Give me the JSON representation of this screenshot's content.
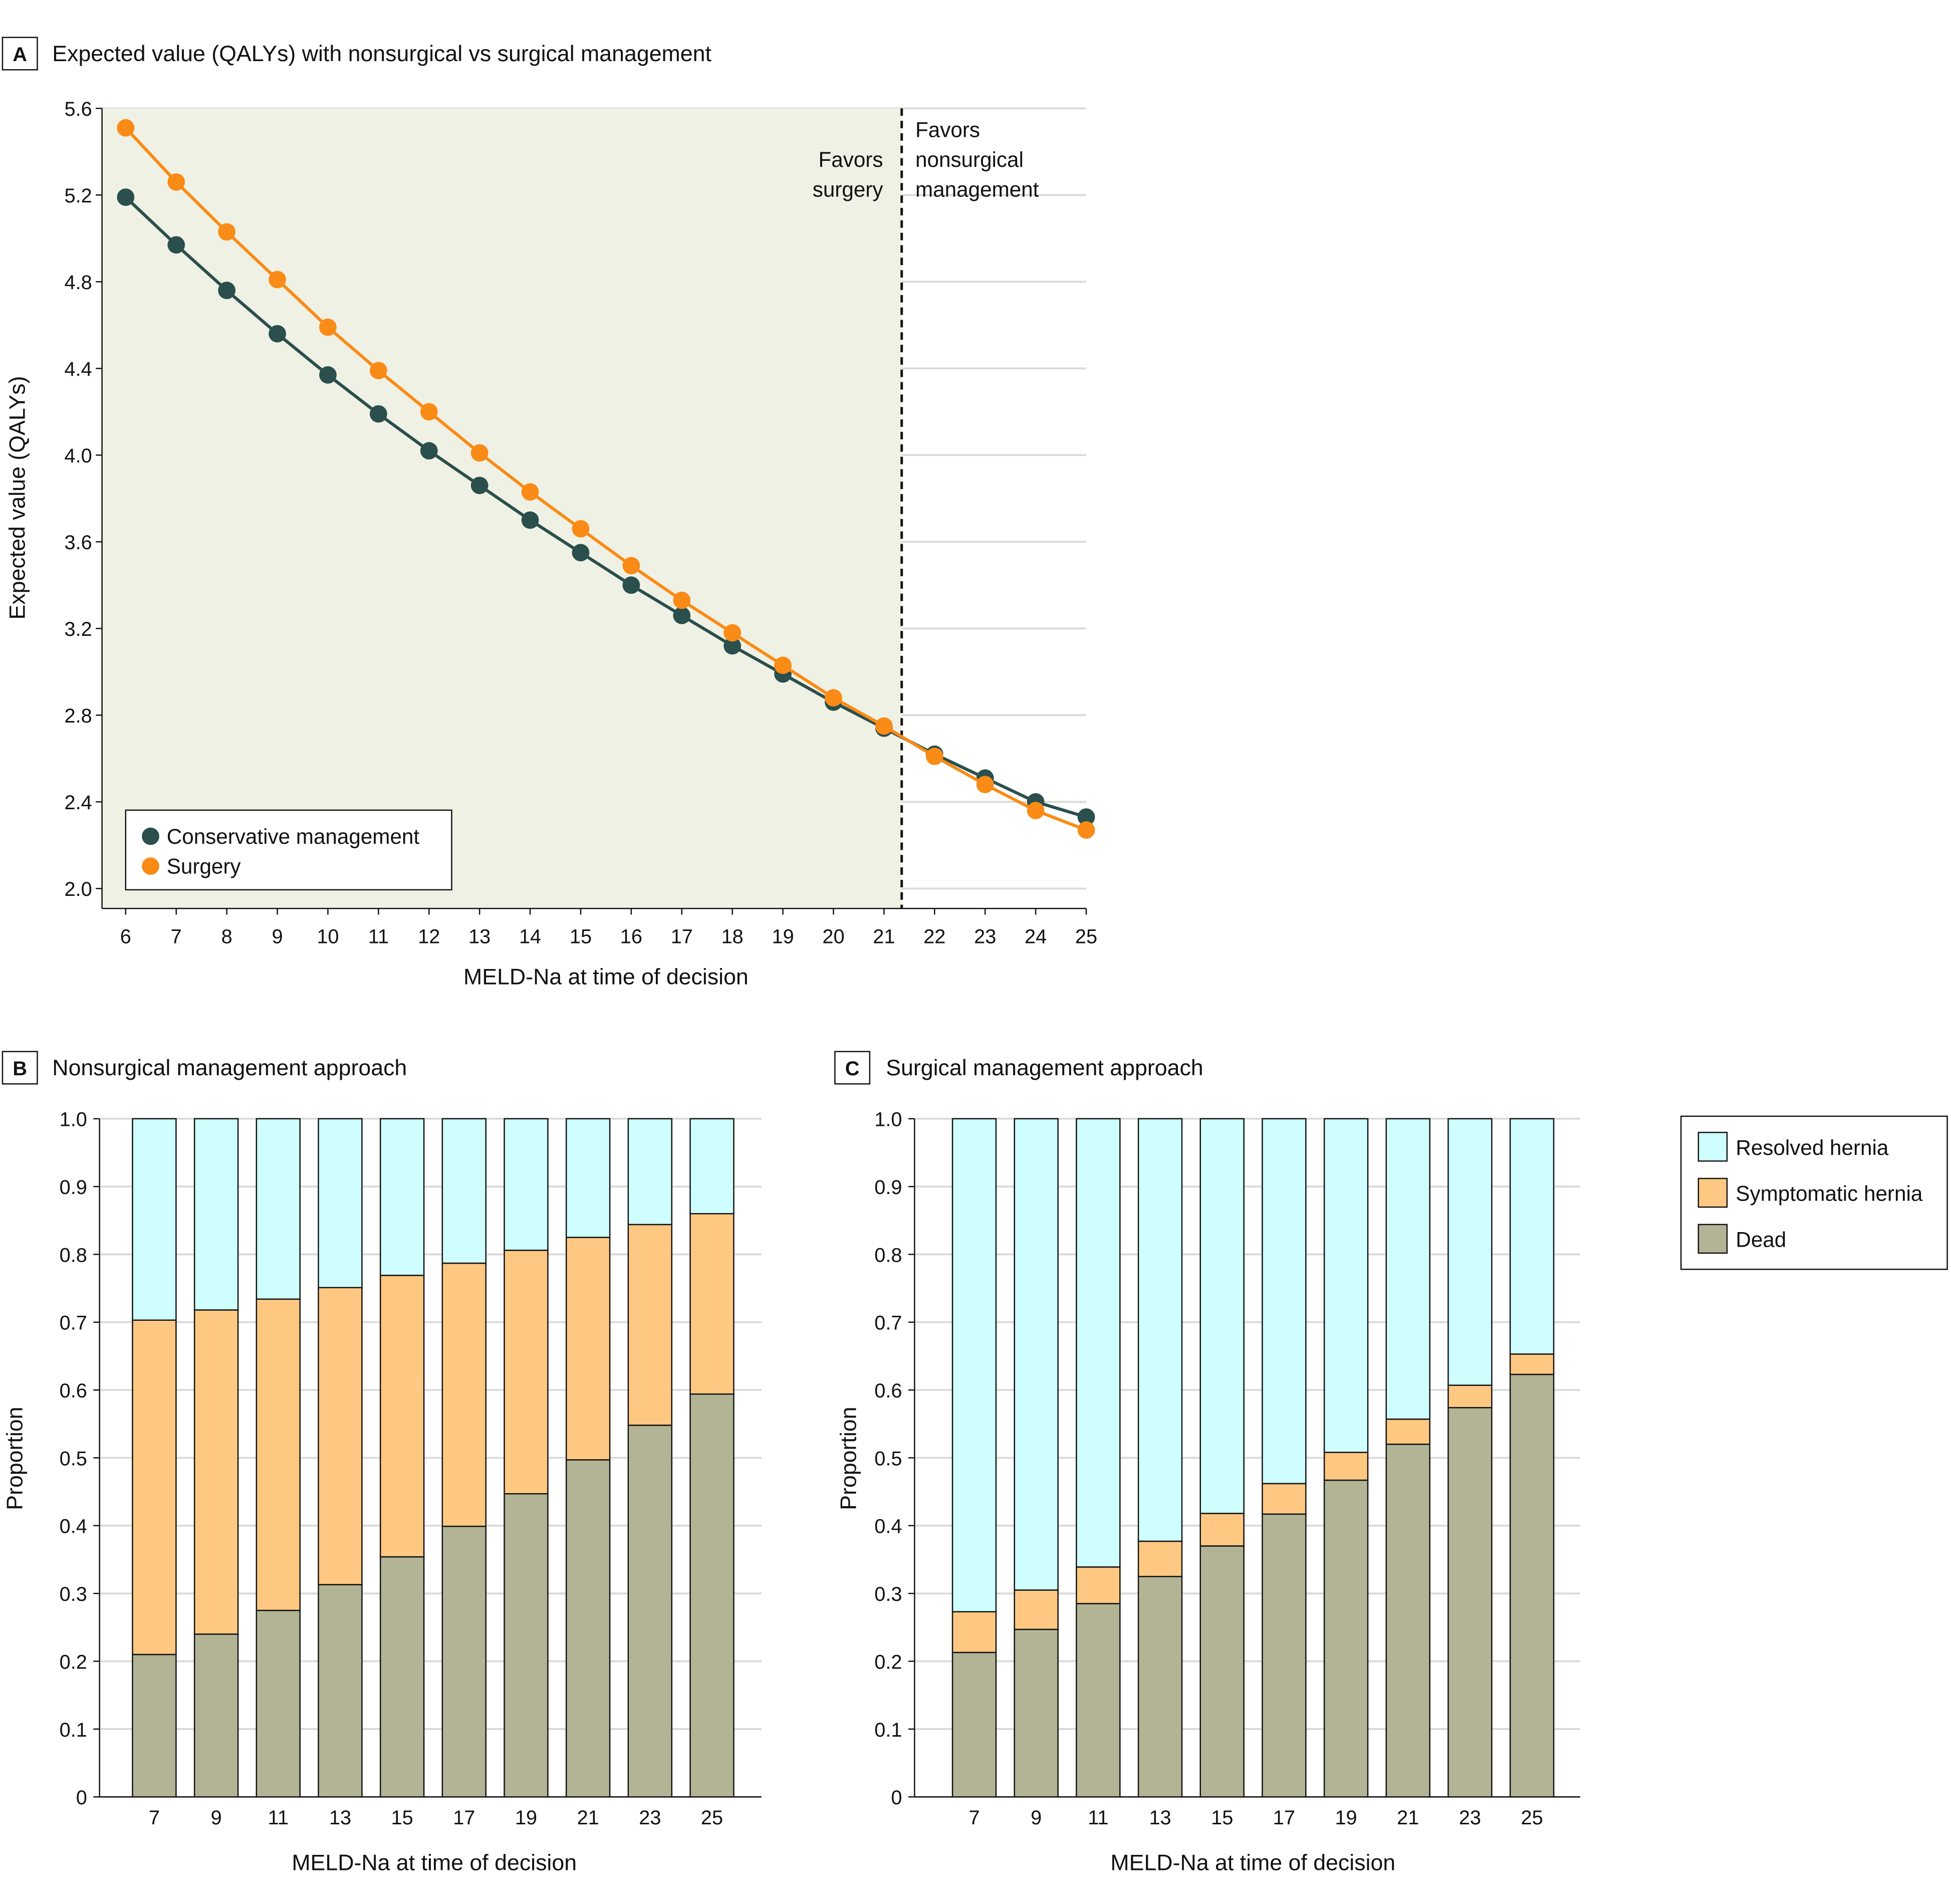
{
  "chart_data": [
    {
      "panel": "A",
      "type": "line",
      "title": "Expected value (QALYs) with nonsurgical vs surgical management",
      "xlabel": "MELD-Na at time of decision",
      "ylabel": "Expected value (QALYs)",
      "x": [
        6,
        7,
        8,
        9,
        10,
        11,
        12,
        13,
        14,
        15,
        16,
        17,
        18,
        19,
        20,
        21,
        22,
        23,
        24,
        25
      ],
      "ylim": [
        2.0,
        5.6
      ],
      "yticks": [
        "2.0",
        "2.4",
        "2.8",
        "3.2",
        "3.6",
        "4.0",
        "4.4",
        "4.8",
        "5.2",
        "5.6"
      ],
      "series": [
        {
          "name": "Conservative management",
          "color": "#2a4f4c",
          "values": [
            5.19,
            4.97,
            4.76,
            4.56,
            4.37,
            4.19,
            4.02,
            3.86,
            3.7,
            3.55,
            3.4,
            3.26,
            3.12,
            2.99,
            2.86,
            2.74,
            2.62,
            2.51,
            2.4,
            2.33
          ]
        },
        {
          "name": "Surgery",
          "color": "#f98b16",
          "values": [
            5.51,
            5.26,
            5.03,
            4.81,
            4.59,
            4.39,
            4.2,
            4.01,
            3.83,
            3.66,
            3.49,
            3.33,
            3.18,
            3.03,
            2.88,
            2.75,
            2.61,
            2.48,
            2.36,
            2.27
          ]
        }
      ],
      "threshold_x": 21.35,
      "annotations": {
        "left": [
          "Favors",
          "surgery"
        ],
        "right": [
          "Favors",
          "nonsurgical",
          "management"
        ]
      },
      "shade_color": "#f0f1e5",
      "legend": "bottom-left",
      "grid": true
    },
    {
      "panel": "B",
      "type": "bar",
      "stacked": true,
      "title": "Nonsurgical management approach",
      "xlabel": "MELD-Na at time of decision",
      "ylabel": "Proportion",
      "categories": [
        "7",
        "9",
        "11",
        "13",
        "15",
        "17",
        "19",
        "21",
        "23",
        "25"
      ],
      "ylim": [
        0,
        1.0
      ],
      "yticks": [
        "0",
        "0.1",
        "0.2",
        "0.3",
        "0.4",
        "0.5",
        "0.6",
        "0.7",
        "0.8",
        "0.9",
        "1.0"
      ],
      "series": [
        {
          "name": "Dead",
          "color": "#b2b495",
          "values": [
            0.21,
            0.24,
            0.275,
            0.313,
            0.354,
            0.399,
            0.447,
            0.497,
            0.548,
            0.594
          ]
        },
        {
          "name": "Symptomatic hernia",
          "color": "#fec882",
          "values": [
            0.493,
            0.478,
            0.459,
            0.438,
            0.415,
            0.388,
            0.359,
            0.328,
            0.296,
            0.266
          ]
        },
        {
          "name": "Resolved hernia",
          "color": "#cefefe",
          "values": [
            0.297,
            0.282,
            0.266,
            0.249,
            0.231,
            0.213,
            0.194,
            0.175,
            0.156,
            0.14
          ]
        }
      ],
      "grid": true
    },
    {
      "panel": "C",
      "type": "bar",
      "stacked": true,
      "title": "Surgical management approach",
      "xlabel": "MELD-Na at time of decision",
      "ylabel": "Proportion",
      "categories": [
        "7",
        "9",
        "11",
        "13",
        "15",
        "17",
        "19",
        "21",
        "23",
        "25"
      ],
      "ylim": [
        0,
        1.0
      ],
      "yticks": [
        "0",
        "0.1",
        "0.2",
        "0.3",
        "0.4",
        "0.5",
        "0.6",
        "0.7",
        "0.8",
        "0.9",
        "1.0"
      ],
      "series": [
        {
          "name": "Dead",
          "color": "#b2b495",
          "values": [
            0.213,
            0.247,
            0.285,
            0.325,
            0.37,
            0.417,
            0.467,
            0.52,
            0.574,
            0.623
          ]
        },
        {
          "name": "Symptomatic hernia",
          "color": "#fec882",
          "values": [
            0.06,
            0.058,
            0.054,
            0.052,
            0.048,
            0.045,
            0.041,
            0.037,
            0.033,
            0.03
          ]
        },
        {
          "name": "Resolved hernia",
          "color": "#cefefe",
          "values": [
            0.727,
            0.695,
            0.661,
            0.623,
            0.582,
            0.538,
            0.492,
            0.443,
            0.393,
            0.347
          ]
        }
      ],
      "legend": "right",
      "legend_order": [
        "Resolved hernia",
        "Symptomatic hernia",
        "Dead"
      ],
      "grid": true
    }
  ]
}
